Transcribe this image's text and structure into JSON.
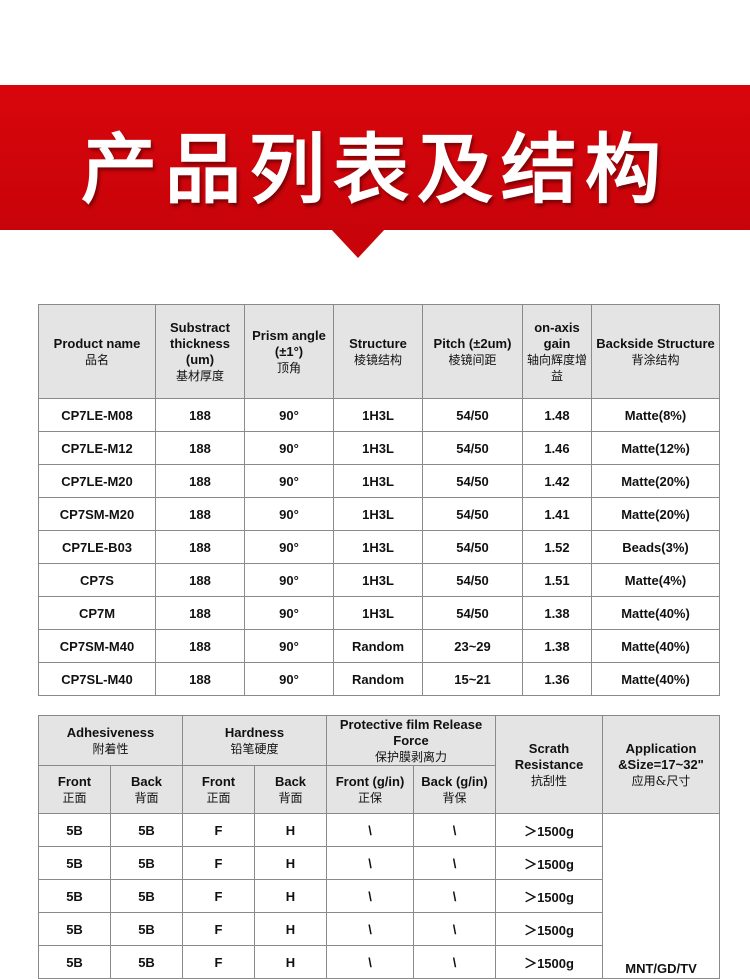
{
  "banner": {
    "title": "产品列表及结构",
    "color": "#d8060c"
  },
  "table1": {
    "headers": [
      {
        "en": "Product name",
        "cn": "品名"
      },
      {
        "en": "Substract thickness (um)",
        "cn": "基材厚度"
      },
      {
        "en": "Prism angle (±1°)",
        "cn": "顶角"
      },
      {
        "en": "Structure",
        "cn": "棱镜结构"
      },
      {
        "en": "Pitch (±2um)",
        "cn": "棱镜间距"
      },
      {
        "en": "on-axis gain",
        "cn": "轴向辉度增益"
      },
      {
        "en": "Backside Structure",
        "cn": "背涂结构"
      }
    ],
    "rows": [
      [
        "CP7LE-M08",
        "188",
        "90°",
        "1H3L",
        "54/50",
        "1.48",
        "Matte(8%)"
      ],
      [
        "CP7LE-M12",
        "188",
        "90°",
        "1H3L",
        "54/50",
        "1.46",
        "Matte(12%)"
      ],
      [
        "CP7LE-M20",
        "188",
        "90°",
        "1H3L",
        "54/50",
        "1.42",
        "Matte(20%)"
      ],
      [
        "CP7SM-M20",
        "188",
        "90°",
        "1H3L",
        "54/50",
        "1.41",
        "Matte(20%)"
      ],
      [
        "CP7LE-B03",
        "188",
        "90°",
        "1H3L",
        "54/50",
        "1.52",
        "Beads(3%)"
      ],
      [
        "CP7S",
        "188",
        "90°",
        "1H3L",
        "54/50",
        "1.51",
        "Matte(4%)"
      ],
      [
        "CP7M",
        "188",
        "90°",
        "1H3L",
        "54/50",
        "1.38",
        "Matte(40%)"
      ],
      [
        "CP7SM-M40",
        "188",
        "90°",
        "Random",
        "23~29",
        "1.38",
        "Matte(40%)"
      ],
      [
        "CP7SL-M40",
        "188",
        "90°",
        "Random",
        "15~21",
        "1.36",
        "Matte(40%)"
      ]
    ]
  },
  "table2": {
    "groups": [
      {
        "en": "Adhesiveness",
        "cn": "附着性"
      },
      {
        "en": "Hardness",
        "cn": "铅笔硬度"
      },
      {
        "en": "Protective film Release Force",
        "cn": "保护膜剥离力"
      },
      {
        "en": "Scrath Resistance",
        "cn": "抗刮性"
      },
      {
        "en": "Application &Size=17~32\"",
        "cn": "应用&尺寸"
      }
    ],
    "subheaders": [
      {
        "en": "Front",
        "cn": "正面"
      },
      {
        "en": "Back",
        "cn": "背面"
      },
      {
        "en": "Front",
        "cn": "正面"
      },
      {
        "en": "Back",
        "cn": "背面"
      },
      {
        "en": "Front (g/in)",
        "cn": "正保"
      },
      {
        "en": "Back (g/in)",
        "cn": "背保"
      }
    ],
    "rows": [
      [
        "5B",
        "5B",
        "F",
        "H",
        "\\",
        "\\",
        "＞1500g"
      ],
      [
        "5B",
        "5B",
        "F",
        "H",
        "\\",
        "\\",
        "＞1500g"
      ],
      [
        "5B",
        "5B",
        "F",
        "H",
        "\\",
        "\\",
        "＞1500g"
      ],
      [
        "5B",
        "5B",
        "F",
        "H",
        "\\",
        "\\",
        "＞1500g"
      ],
      [
        "5B",
        "5B",
        "F",
        "H",
        "\\",
        "\\",
        "＞1500g"
      ]
    ],
    "application": "MNT/GD/TV"
  }
}
